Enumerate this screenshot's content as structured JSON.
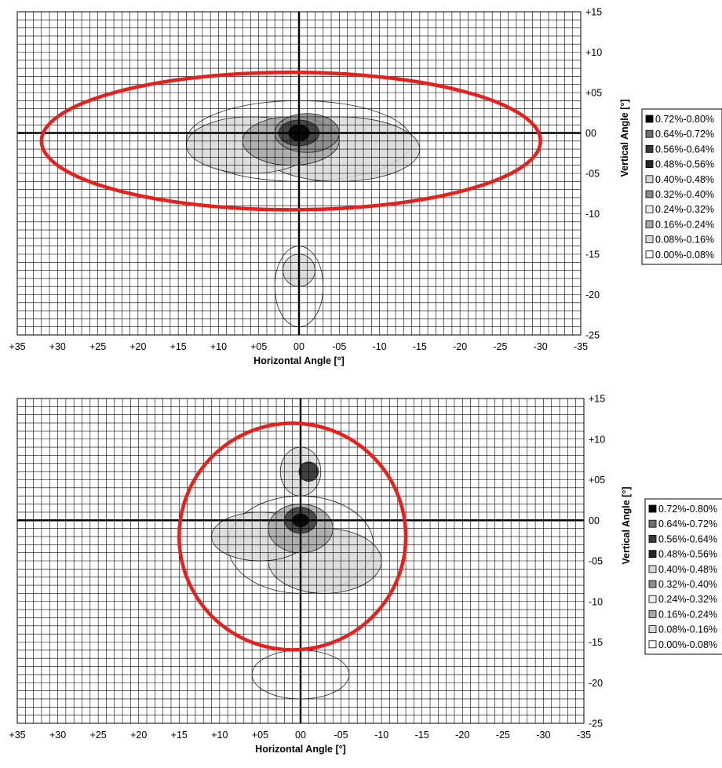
{
  "chart_data": [
    {
      "type": "heatmap",
      "xlabel": "Horizontal Angle [°]",
      "ylabel": "Vertical Angle [°]",
      "x_ticks": [
        "+35",
        "+30",
        "+25",
        "+20",
        "+15",
        "+10",
        "+05",
        "00",
        "-05",
        "-10",
        "-15",
        "-20",
        "-25",
        "-30",
        "-35"
      ],
      "y_ticks": [
        "+15",
        "+10",
        "+05",
        "00",
        "-05",
        "-10",
        "-15",
        "-20",
        "-25"
      ],
      "xlim": [
        35,
        -35
      ],
      "ylim": [
        -25,
        15
      ],
      "legend_position": "right",
      "legend": [
        "0.72%-0.80%",
        "0.64%-0.72%",
        "0.56%-0.64%",
        "0.48%-0.56%",
        "0.40%-0.48%",
        "0.32%-0.40%",
        "0.24%-0.32%",
        "0.16%-0.24%",
        "0.08%-0.16%",
        "0.00%-0.08%"
      ],
      "annotation": {
        "shape": "ellipse",
        "color": "#e8201c",
        "center": [
          1,
          -1
        ],
        "radii": [
          31,
          8.5
        ]
      },
      "peak": [
        0,
        0
      ]
    },
    {
      "type": "heatmap",
      "xlabel": "Horizontal Angle [°]",
      "ylabel": "Vertical Angle [°]",
      "x_ticks": [
        "+35",
        "+30",
        "+25",
        "+20",
        "+15",
        "+10",
        "+05",
        "00",
        "-05",
        "-10",
        "-15",
        "-20",
        "-25",
        "-30",
        "-35"
      ],
      "y_ticks": [
        "+15",
        "+10",
        "+05",
        "00",
        "-05",
        "-10",
        "-15",
        "-20",
        "-25"
      ],
      "xlim": [
        35,
        -35
      ],
      "ylim": [
        -25,
        15
      ],
      "legend_position": "right",
      "legend": [
        "0.72%-0.80%",
        "0.64%-0.72%",
        "0.56%-0.64%",
        "0.48%-0.56%",
        "0.40%-0.48%",
        "0.32%-0.40%",
        "0.24%-0.32%",
        "0.16%-0.24%",
        "0.08%-0.16%",
        "0.00%-0.08%"
      ],
      "annotation": {
        "shape": "circle",
        "color": "#e8201c",
        "center": [
          1,
          -2
        ],
        "radii": [
          14,
          14
        ]
      },
      "peak": [
        0,
        0
      ]
    }
  ],
  "colors": {
    "grid": "#000000",
    "annotation": "#e8201c",
    "legend_fills": [
      "#000000",
      "#6e6e6e",
      "#3a3a3a",
      "#262626",
      "#d6d6d6",
      "#8c8c8c",
      "#eeeeee",
      "#a8a8a8",
      "#dadada",
      "#ffffff"
    ]
  }
}
